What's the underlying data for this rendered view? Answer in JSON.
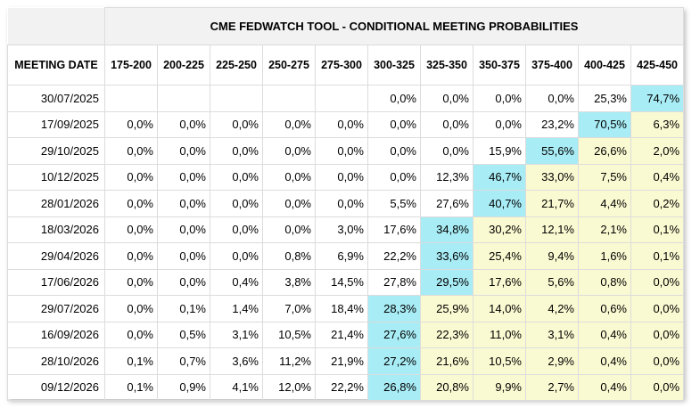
{
  "title": "CME FEDWATCH TOOL - CONDITIONAL MEETING PROBABILITIES",
  "header": {
    "meeting_date": "MEETING DATE",
    "ranges": [
      "175-200",
      "200-225",
      "225-250",
      "250-275",
      "275-300",
      "300-325",
      "325-350",
      "350-375",
      "375-400",
      "400-425",
      "425-450"
    ]
  },
  "colors": {
    "max_cell": "#a8ecf5",
    "shaded_cell": "#fafad2"
  },
  "rows": [
    {
      "date": "30/07/2025",
      "values": [
        "",
        "",
        "",
        "",
        "",
        "0,0%",
        "0,0%",
        "0,0%",
        "0,0%",
        "25,3%",
        "74,7%"
      ],
      "max_col": 10,
      "shade_from": 11
    },
    {
      "date": "17/09/2025",
      "values": [
        "0,0%",
        "0,0%",
        "0,0%",
        "0,0%",
        "0,0%",
        "0,0%",
        "0,0%",
        "0,0%",
        "23,2%",
        "70,5%",
        "6,3%"
      ],
      "max_col": 9,
      "shade_from": 10
    },
    {
      "date": "29/10/2025",
      "values": [
        "0,0%",
        "0,0%",
        "0,0%",
        "0,0%",
        "0,0%",
        "0,0%",
        "0,0%",
        "15,9%",
        "55,6%",
        "26,6%",
        "2,0%"
      ],
      "max_col": 8,
      "shade_from": 9
    },
    {
      "date": "10/12/2025",
      "values": [
        "0,0%",
        "0,0%",
        "0,0%",
        "0,0%",
        "0,0%",
        "0,0%",
        "12,3%",
        "46,7%",
        "33,0%",
        "7,5%",
        "0,4%"
      ],
      "max_col": 7,
      "shade_from": 8
    },
    {
      "date": "28/01/2026",
      "values": [
        "0,0%",
        "0,0%",
        "0,0%",
        "0,0%",
        "0,0%",
        "5,5%",
        "27,6%",
        "40,7%",
        "21,7%",
        "4,4%",
        "0,2%"
      ],
      "max_col": 7,
      "shade_from": 8
    },
    {
      "date": "18/03/2026",
      "values": [
        "0,0%",
        "0,0%",
        "0,0%",
        "0,0%",
        "3,0%",
        "17,6%",
        "34,8%",
        "30,2%",
        "12,1%",
        "2,1%",
        "0,1%"
      ],
      "max_col": 6,
      "shade_from": 7
    },
    {
      "date": "29/04/2026",
      "values": [
        "0,0%",
        "0,0%",
        "0,0%",
        "0,8%",
        "6,9%",
        "22,2%",
        "33,6%",
        "25,4%",
        "9,4%",
        "1,6%",
        "0,1%"
      ],
      "max_col": 6,
      "shade_from": 7
    },
    {
      "date": "17/06/2026",
      "values": [
        "0,0%",
        "0,0%",
        "0,4%",
        "3,8%",
        "14,5%",
        "27,8%",
        "29,5%",
        "17,6%",
        "5,6%",
        "0,8%",
        "0,0%"
      ],
      "max_col": 6,
      "shade_from": 7
    },
    {
      "date": "29/07/2026",
      "values": [
        "0,0%",
        "0,1%",
        "1,4%",
        "7,0%",
        "18,4%",
        "28,3%",
        "25,9%",
        "14,0%",
        "4,2%",
        "0,6%",
        "0,0%"
      ],
      "max_col": 5,
      "shade_from": 6
    },
    {
      "date": "16/09/2026",
      "values": [
        "0,0%",
        "0,5%",
        "3,1%",
        "10,5%",
        "21,4%",
        "27,6%",
        "22,3%",
        "11,0%",
        "3,1%",
        "0,4%",
        "0,0%"
      ],
      "max_col": 5,
      "shade_from": 6
    },
    {
      "date": "28/10/2026",
      "values": [
        "0,1%",
        "0,7%",
        "3,6%",
        "11,2%",
        "21,9%",
        "27,2%",
        "21,6%",
        "10,5%",
        "2,9%",
        "0,4%",
        "0,0%"
      ],
      "max_col": 5,
      "shade_from": 6
    },
    {
      "date": "09/12/2026",
      "values": [
        "0,1%",
        "0,9%",
        "4,1%",
        "12,0%",
        "22,2%",
        "26,8%",
        "20,8%",
        "9,9%",
        "2,7%",
        "0,4%",
        "0,0%"
      ],
      "max_col": 5,
      "shade_from": 6
    }
  ]
}
